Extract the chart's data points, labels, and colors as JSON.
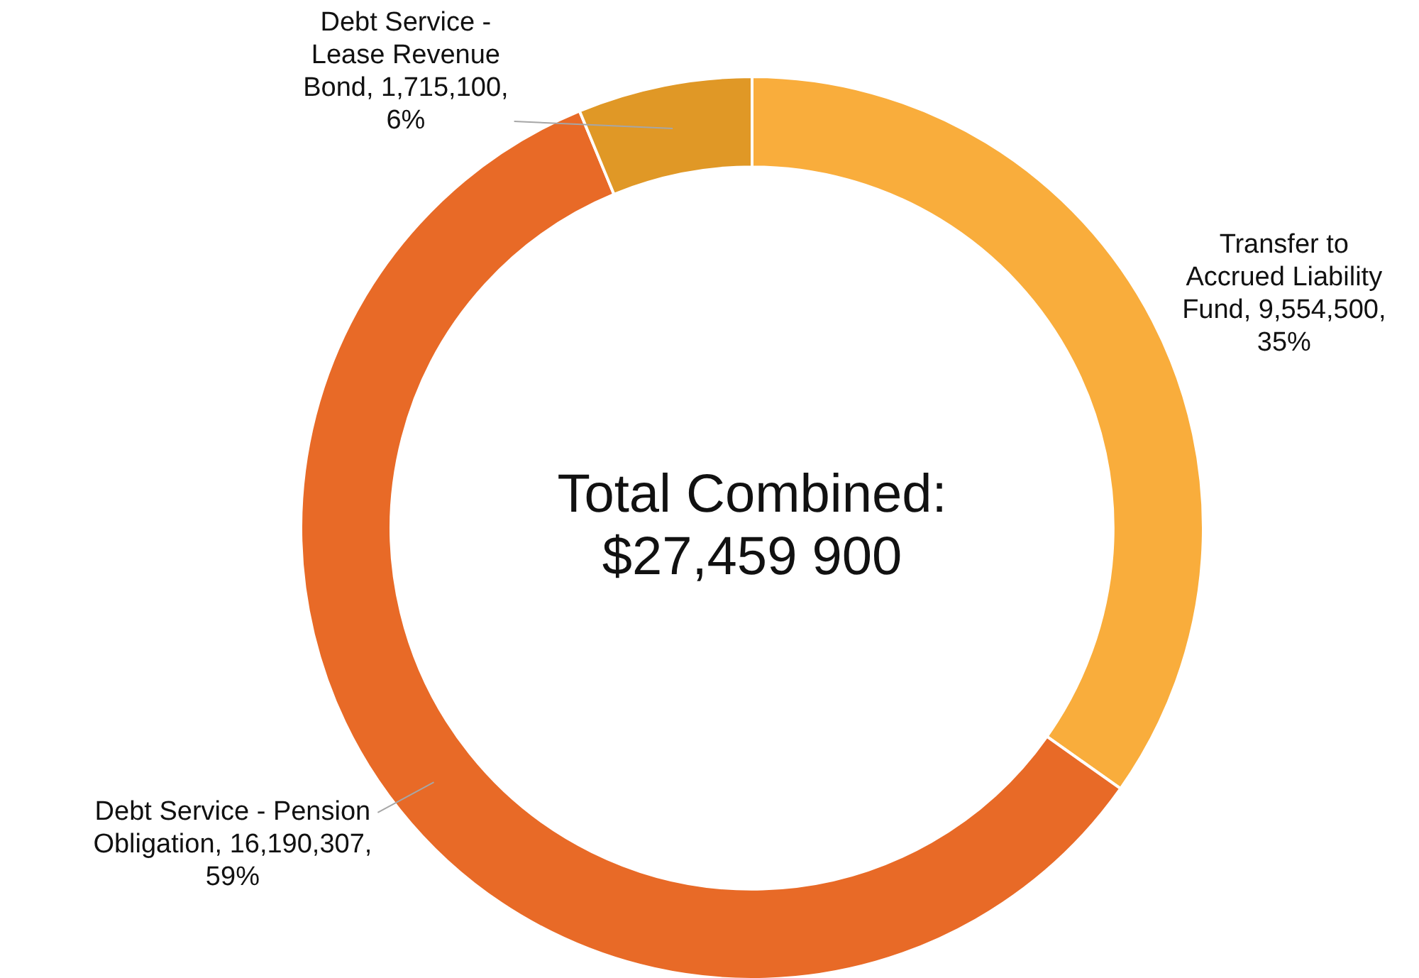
{
  "chart_data": {
    "type": "donut",
    "categories": [
      "Transfer to Accrued Liability Fund",
      "Debt Service - Pension Obligation",
      "Debt Service - Lease Revenue Bond"
    ],
    "values": [
      9554500,
      16190307,
      1715100
    ],
    "colors": [
      "#f9ad3c",
      "#e86a27",
      "#e09826"
    ],
    "value_labels": [
      "9,554,500, 35%",
      "16,190,307, 59%",
      "1,715,100, 6%"
    ],
    "annotations": [
      "Total Combined: $27,459 900"
    ],
    "legend": false
  }
}
